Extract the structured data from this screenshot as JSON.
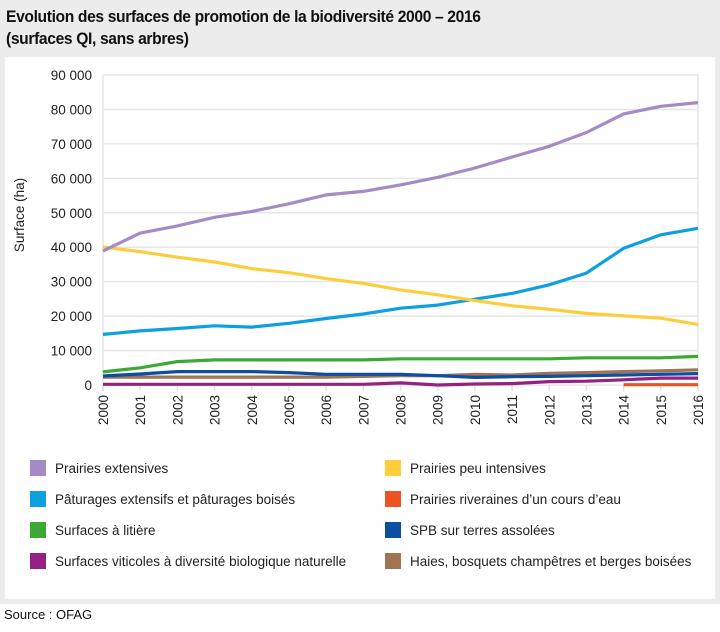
{
  "title_line1": "Evolution des surfaces de promotion de la biodiversité 2000 – 2016",
  "title_line2": "(surfaces QI, sans arbres)",
  "source": "Source : OFAG",
  "chart_data": {
    "type": "line",
    "title": "Evolution des surfaces de promotion de la biodiversité 2000 – 2016 (surfaces QI, sans arbres)",
    "xlabel": "",
    "ylabel": "Surface (ha)",
    "ylim": [
      0,
      90000
    ],
    "yticks": [
      0,
      10000,
      20000,
      30000,
      40000,
      50000,
      60000,
      70000,
      80000,
      90000
    ],
    "ytick_labels": [
      "0",
      "10 000",
      "20 000",
      "30 000",
      "40 000",
      "50 000",
      "60 000",
      "70 000",
      "80 000",
      "90 000"
    ],
    "grid": true,
    "legend_position": "bottom",
    "x": [
      "2000",
      "2001",
      "2002",
      "2003",
      "2004",
      "2005",
      "2006",
      "2007",
      "2008",
      "2009",
      "2010",
      "2011",
      "2012",
      "2013",
      "2014",
      "2015",
      "2016"
    ],
    "series": [
      {
        "name": "Prairies extensives",
        "color": "#a58bc6",
        "values": [
          38900,
          44100,
          46200,
          48700,
          50400,
          52600,
          55200,
          56200,
          58100,
          60300,
          63000,
          66200,
          69300,
          73300,
          78700,
          80900,
          82000
        ]
      },
      {
        "name": "Prairies peu intensives",
        "color": "#fecd3c",
        "values": [
          40100,
          38700,
          37100,
          35700,
          33800,
          32600,
          30900,
          29500,
          27600,
          26200,
          24500,
          23000,
          22000,
          20800,
          20100,
          19400,
          17600
        ]
      },
      {
        "name": "Pâturages extensifs et pâturages boisés",
        "color": "#0ca0e0",
        "values": [
          14700,
          15700,
          16400,
          17200,
          16800,
          17900,
          19300,
          20600,
          22300,
          23200,
          24900,
          26600,
          29100,
          32500,
          39700,
          43600,
          45500
        ]
      },
      {
        "name": "Prairies riveraines d’un cours d’eau",
        "color": "#ee5122",
        "values": [
          null,
          null,
          null,
          null,
          null,
          null,
          null,
          null,
          null,
          null,
          null,
          null,
          null,
          null,
          100,
          100,
          100
        ]
      },
      {
        "name": "Surfaces à litière",
        "color": "#3aaa35",
        "values": [
          3800,
          5000,
          6800,
          7300,
          7300,
          7300,
          7300,
          7300,
          7600,
          7600,
          7600,
          7600,
          7600,
          7900,
          7900,
          7900,
          8300
        ]
      },
      {
        "name": "SPB sur terres assolées",
        "color": "#0b4ea2",
        "values": [
          2600,
          3200,
          3900,
          3900,
          3900,
          3600,
          3100,
          3100,
          3100,
          2700,
          2200,
          2400,
          2500,
          2700,
          2900,
          3100,
          3300
        ]
      },
      {
        "name": "Surfaces viticoles à diversité biologique naturelle",
        "color": "#952283",
        "values": [
          200,
          200,
          200,
          200,
          200,
          200,
          200,
          200,
          600,
          0,
          300,
          400,
          1000,
          1100,
          1500,
          2000,
          2000
        ]
      },
      {
        "name": "Haies, bosquets champêtres et berges boisées",
        "color": "#a07352",
        "values": [
          2300,
          2300,
          2300,
          2300,
          2300,
          2300,
          2300,
          2500,
          2700,
          2700,
          3100,
          2900,
          3400,
          3600,
          3900,
          4100,
          4400
        ]
      }
    ]
  }
}
